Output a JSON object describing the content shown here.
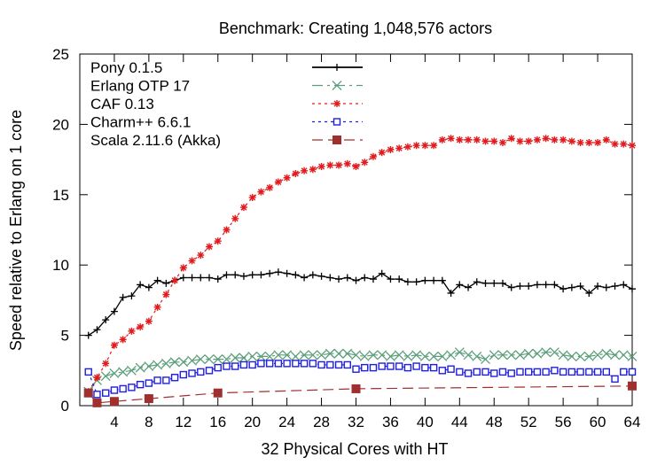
{
  "chart_data": {
    "type": "line",
    "title": "Benchmark: Creating 1,048,576 actors",
    "xlabel": "32 Physical Cores with HT",
    "ylabel": "Speed relative to Erlang on 1 core",
    "xlim": [
      0,
      64
    ],
    "ylim": [
      0,
      25
    ],
    "xticks": [
      4,
      8,
      12,
      16,
      20,
      24,
      28,
      32,
      36,
      40,
      44,
      48,
      52,
      56,
      60,
      64
    ],
    "yticks": [
      0,
      5,
      10,
      15,
      20,
      25
    ],
    "grid": false,
    "legend_position": "top-left",
    "series": [
      {
        "name": "Pony 0.1.5",
        "color": "#000000",
        "marker": "plus",
        "dash": "solid",
        "x": [
          1,
          2,
          3,
          4,
          5,
          6,
          7,
          8,
          9,
          10,
          11,
          12,
          13,
          14,
          15,
          16,
          17,
          18,
          19,
          20,
          21,
          22,
          23,
          24,
          25,
          26,
          27,
          28,
          29,
          30,
          31,
          32,
          33,
          34,
          35,
          36,
          37,
          38,
          39,
          40,
          41,
          42,
          43,
          44,
          45,
          46,
          47,
          48,
          49,
          50,
          51,
          52,
          53,
          54,
          55,
          56,
          57,
          58,
          59,
          60,
          61,
          62,
          63,
          64
        ],
        "y": [
          5.0,
          5.4,
          6.1,
          6.7,
          7.7,
          7.8,
          8.6,
          8.4,
          8.9,
          8.7,
          8.9,
          9.1,
          9.1,
          9.1,
          9.1,
          9.0,
          9.3,
          9.3,
          9.2,
          9.3,
          9.3,
          9.4,
          9.5,
          9.4,
          9.3,
          9.1,
          9.3,
          9.2,
          9.1,
          9.0,
          9.1,
          8.9,
          9.1,
          9.0,
          9.4,
          9.0,
          9.0,
          8.8,
          8.8,
          8.9,
          8.9,
          8.9,
          8.0,
          8.6,
          8.4,
          8.8,
          8.7,
          8.7,
          8.7,
          8.4,
          8.5,
          8.5,
          8.6,
          8.6,
          8.6,
          8.3,
          8.4,
          8.5,
          8.0,
          8.5,
          8.4,
          8.5,
          8.6,
          8.3
        ]
      },
      {
        "name": "Erlang OTP 17",
        "color": "#5b9e7a",
        "marker": "x",
        "dash": "dashdot",
        "x": [
          1,
          2,
          3,
          4,
          5,
          6,
          7,
          8,
          9,
          10,
          11,
          12,
          13,
          14,
          15,
          16,
          17,
          18,
          19,
          20,
          21,
          22,
          23,
          24,
          25,
          26,
          27,
          28,
          29,
          30,
          31,
          32,
          33,
          34,
          35,
          36,
          37,
          38,
          39,
          40,
          41,
          42,
          43,
          44,
          45,
          46,
          47,
          48,
          49,
          50,
          51,
          52,
          53,
          54,
          55,
          56,
          57,
          58,
          59,
          60,
          61,
          62,
          63,
          64
        ],
        "y": [
          1.0,
          1.8,
          2.1,
          2.3,
          2.4,
          2.5,
          2.7,
          2.8,
          2.9,
          3.0,
          3.1,
          3.1,
          3.2,
          3.3,
          3.3,
          3.3,
          3.3,
          3.4,
          3.4,
          3.5,
          3.5,
          3.5,
          3.6,
          3.6,
          3.5,
          3.6,
          3.6,
          3.6,
          3.7,
          3.7,
          3.7,
          3.6,
          3.5,
          3.6,
          3.6,
          3.5,
          3.6,
          3.5,
          3.6,
          3.5,
          3.5,
          3.5,
          3.6,
          3.8,
          3.6,
          3.5,
          3.3,
          3.6,
          3.6,
          3.6,
          3.6,
          3.7,
          3.7,
          3.8,
          3.8,
          3.6,
          3.5,
          3.5,
          3.5,
          3.6,
          3.7,
          3.6,
          3.6,
          3.5
        ]
      },
      {
        "name": "CAF 0.13",
        "color": "#e31a1c",
        "marker": "star",
        "dash": "dotted",
        "x": [
          1,
          2,
          3,
          4,
          5,
          6,
          7,
          8,
          9,
          10,
          11,
          12,
          13,
          14,
          15,
          16,
          17,
          18,
          19,
          20,
          21,
          22,
          23,
          24,
          25,
          26,
          27,
          28,
          29,
          30,
          31,
          32,
          33,
          34,
          35,
          36,
          37,
          38,
          39,
          40,
          41,
          42,
          43,
          44,
          45,
          46,
          47,
          48,
          49,
          50,
          51,
          52,
          53,
          54,
          55,
          56,
          57,
          58,
          59,
          60,
          61,
          62,
          63,
          64
        ],
        "y": [
          1.0,
          2.0,
          3.0,
          4.3,
          4.7,
          5.3,
          5.6,
          6.0,
          7.0,
          7.9,
          8.9,
          9.8,
          10.3,
          10.7,
          11.3,
          11.7,
          12.5,
          13.3,
          14.1,
          14.8,
          15.2,
          15.5,
          15.9,
          16.2,
          16.5,
          16.7,
          16.8,
          17.0,
          17.1,
          17.1,
          17.2,
          17.0,
          17.3,
          17.7,
          18.0,
          18.2,
          18.3,
          18.4,
          18.5,
          18.5,
          18.5,
          18.9,
          19.0,
          18.9,
          18.9,
          18.9,
          18.8,
          18.8,
          18.7,
          19.0,
          18.8,
          18.8,
          18.9,
          19.0,
          18.9,
          18.9,
          18.8,
          18.7,
          18.7,
          18.7,
          18.9,
          18.6,
          18.6,
          18.5
        ]
      },
      {
        "name": "Charm++ 6.6.1",
        "color": "#1f1fe0",
        "marker": "open-square",
        "dash": "dotted",
        "x": [
          1,
          2,
          3,
          4,
          5,
          6,
          7,
          8,
          9,
          10,
          11,
          12,
          13,
          14,
          15,
          16,
          17,
          18,
          19,
          20,
          21,
          22,
          23,
          24,
          25,
          26,
          27,
          28,
          29,
          30,
          31,
          32,
          33,
          34,
          35,
          36,
          37,
          38,
          39,
          40,
          41,
          42,
          43,
          44,
          45,
          46,
          47,
          48,
          49,
          50,
          51,
          52,
          53,
          54,
          55,
          56,
          57,
          58,
          59,
          60,
          61,
          62,
          63,
          64
        ],
        "y": [
          2.4,
          0.8,
          0.9,
          1.1,
          1.2,
          1.3,
          1.5,
          1.6,
          1.8,
          1.8,
          2.0,
          2.2,
          2.3,
          2.4,
          2.5,
          2.7,
          2.8,
          2.8,
          2.9,
          2.9,
          3.0,
          3.0,
          3.0,
          3.0,
          3.0,
          3.0,
          3.0,
          2.9,
          2.9,
          2.9,
          2.9,
          2.6,
          2.7,
          2.7,
          2.8,
          2.8,
          2.8,
          2.7,
          2.8,
          2.7,
          2.7,
          2.5,
          2.6,
          2.4,
          2.3,
          2.4,
          2.4,
          2.3,
          2.4,
          2.3,
          2.4,
          2.4,
          2.4,
          2.4,
          2.5,
          2.4,
          2.4,
          2.4,
          2.4,
          2.4,
          2.4,
          1.9,
          2.4,
          2.4
        ]
      },
      {
        "name": "Scala 2.11.6 (Akka)",
        "color": "#a0302e",
        "marker": "filled-square",
        "dash": "dashed",
        "x": [
          1,
          2,
          4,
          8,
          16,
          32,
          64
        ],
        "y": [
          0.9,
          0.2,
          0.3,
          0.5,
          0.9,
          1.2,
          1.4
        ]
      }
    ]
  }
}
